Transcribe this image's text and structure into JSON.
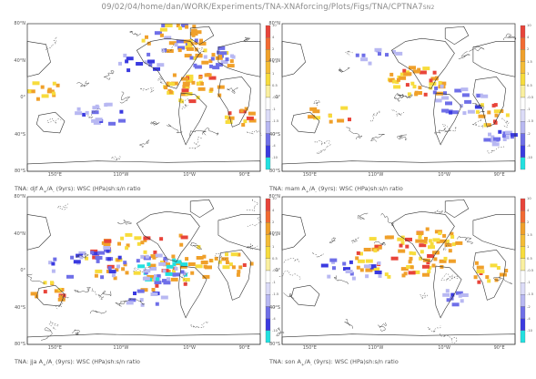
{
  "page_title": "09/02/04/home/dan/WORK/Experiments/TNA-XNAforcing/Plots/Figs/TNA/CPTNA7",
  "page_title_suffix": "SN2",
  "colors": {
    "cyan": "#22e0e0",
    "blue": "#3a3ae0",
    "mid_blue": "#6f6fe8",
    "light_blue": "#b8b8f2",
    "orange": "#f0a02a",
    "yellow": "#f7dc3c",
    "red": "#e8443a",
    "coast": "#333333"
  },
  "chart_data": [
    {
      "type": "heatmap",
      "caption_before": "TNA: djf A",
      "caption_sub1": "+",
      "caption_mid": "/A",
      "caption_sub2": "-",
      "caption_after": " (9yrs): WSC (HPa)sh:s/n ratio",
      "lat_labels": [
        "80°N",
        "40°N",
        "0°",
        "40°S",
        "80°S"
      ],
      "lon_labels": [
        "150°E",
        "110°W",
        "10°W",
        "90°E"
      ],
      "colorbar_ticks": [
        "10",
        "4",
        "2",
        "1.5",
        "1",
        "0.5",
        "-0.5",
        "-1",
        "-1.5",
        "-2",
        "-4",
        "-10"
      ]
    },
    {
      "type": "heatmap",
      "caption_before": "TNA: mam A",
      "caption_sub1": "+",
      "caption_mid": "/A",
      "caption_sub2": "-",
      "caption_after": " (9yrs): WSC (HPa)sh:s/n ratio",
      "lat_labels": [
        "80°N",
        "40°N",
        "0°",
        "40°S",
        "80°S"
      ],
      "lon_labels": [
        "150°E",
        "110°W",
        "10°W",
        "90°E"
      ],
      "colorbar_ticks": [
        "10",
        "4",
        "2",
        "1.5",
        "1",
        "0.5",
        "-0.5",
        "-1",
        "-1.5",
        "-2",
        "-4",
        "-10"
      ]
    },
    {
      "type": "heatmap",
      "caption_before": "TNA: jja A",
      "caption_sub1": "+",
      "caption_mid": "/A",
      "caption_sub2": "-",
      "caption_after": " (9yrs): WSC (HPa)sh:s/n ratio",
      "lat_labels": [
        "80°N",
        "40°N",
        "0°",
        "40°S",
        "80°S"
      ],
      "lon_labels": [
        "150°E",
        "110°W",
        "10°W",
        "90°E"
      ],
      "colorbar_ticks": [
        "10",
        "4",
        "2",
        "1.5",
        "1",
        "0.5",
        "-0.5",
        "-1",
        "-1.5",
        "-2",
        "-4",
        "-10"
      ]
    },
    {
      "type": "heatmap",
      "caption_before": "TNA: son A",
      "caption_sub1": "+",
      "caption_mid": "/A",
      "caption_sub2": "-",
      "caption_after": " (9yrs): WSC (HPa)sh:s/n ratio",
      "lat_labels": [
        "80°N",
        "40°N",
        "0°",
        "40°S",
        "80°S"
      ],
      "lon_labels": [
        "150°E",
        "110°W",
        "10°W",
        "90°E"
      ],
      "colorbar_ticks": [
        "10",
        "4",
        "2",
        "1.5",
        "1",
        "0.5",
        "-0.5",
        "-1",
        "-1.5",
        "-2",
        "-4",
        "-10"
      ]
    }
  ]
}
